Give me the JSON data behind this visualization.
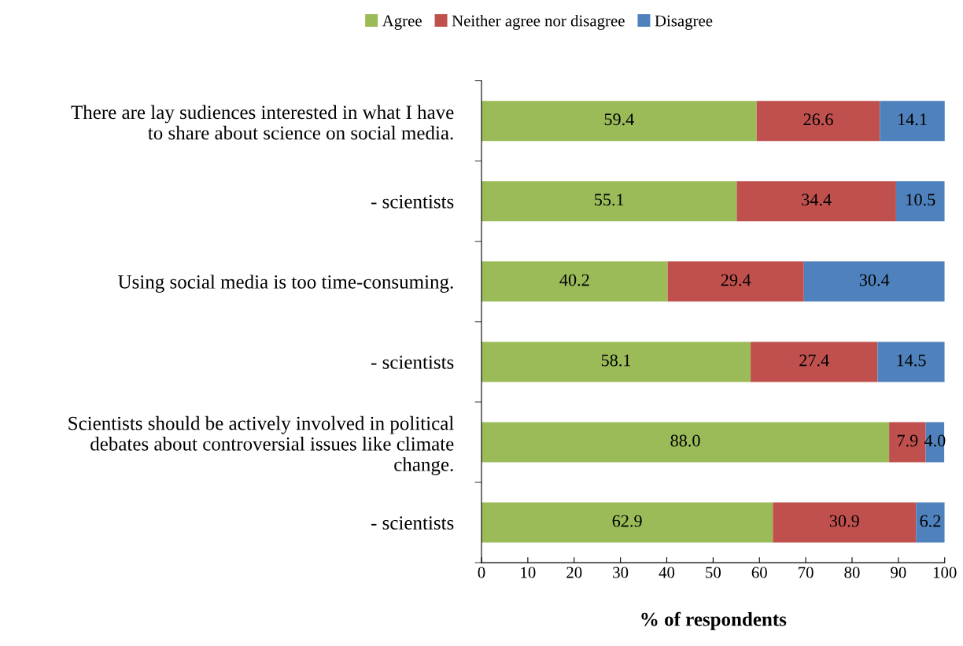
{
  "chart_data": {
    "type": "bar",
    "orientation": "horizontal",
    "stacked": true,
    "xlabel": "% of respondents",
    "categories": [
      "There are lay sudiences interested in what I have\nto share about science on social media.",
      "- scientists",
      "Using social media is too time-consuming.",
      "- scientists",
      "Scientists should be actively involved in political\ndebates about controversial issues like climate\nchange.",
      "- scientists"
    ],
    "series": [
      {
        "name": "Agree",
        "color": "#9bbb59",
        "values": [
          59.4,
          55.1,
          40.2,
          58.1,
          88.0,
          62.9
        ],
        "value_labels": [
          "59.4",
          "55.1",
          "40.2",
          "58.1",
          "88.0",
          "62.9"
        ]
      },
      {
        "name": "Neither agree nor disagree",
        "color": "#c0504d",
        "values": [
          26.6,
          34.4,
          29.4,
          27.4,
          7.9,
          30.9
        ],
        "value_labels": [
          "26.6",
          "34.4",
          "29.4",
          "27.4",
          "7.9",
          "30.9"
        ]
      },
      {
        "name": "Disagree",
        "color": "#4f81bd",
        "values": [
          14.1,
          10.5,
          30.4,
          14.5,
          4.0,
          6.2
        ],
        "value_labels": [
          "14.1",
          "10.5",
          "30.4",
          "14.5",
          "4.0",
          "6.2"
        ]
      }
    ],
    "xlim": [
      0,
      100
    ],
    "xticks": [
      0,
      10,
      20,
      30,
      40,
      50,
      60,
      70,
      80,
      90,
      100
    ],
    "grid": false,
    "legend": "top"
  }
}
